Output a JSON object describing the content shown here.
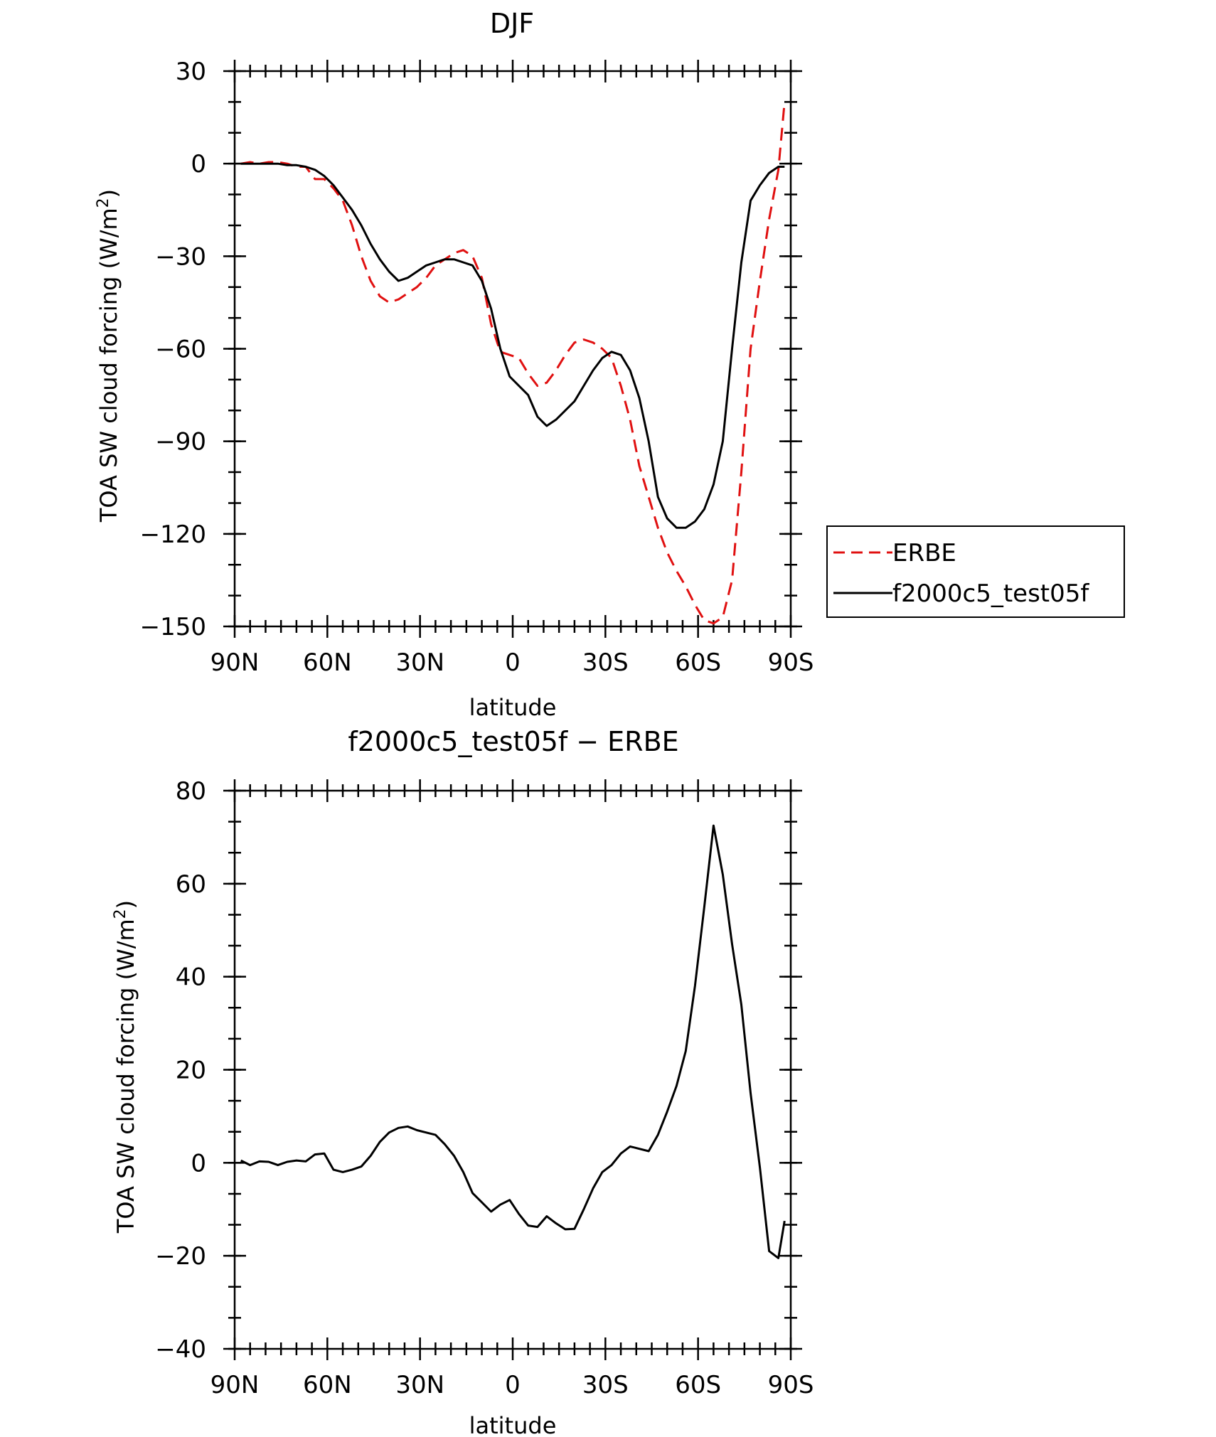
{
  "chart_data": [
    {
      "type": "line",
      "title": "DJF",
      "xlabel": "latitude",
      "ylabel": "TOA SW cloud forcing (W/m",
      "ylabel_sup": "2",
      "ylabel_close": ")",
      "xlim": [
        90,
        -90
      ],
      "ylim": [
        -150,
        30
      ],
      "x_ticks": [
        90,
        60,
        30,
        0,
        -30,
        -60,
        -90
      ],
      "x_tick_labels": [
        "90N",
        "60N",
        "30N",
        "0",
        "30S",
        "60S",
        "90S"
      ],
      "y_ticks": [
        30,
        0,
        -30,
        -60,
        -90,
        -120,
        -150
      ],
      "y_tick_labels": [
        "30",
        "0",
        "−30",
        "−60",
        "−90",
        "−120",
        "−150"
      ],
      "legend": "right",
      "series": [
        {
          "name": "ERBE",
          "color": "#e01010",
          "dash": "dashed",
          "x": [
            88,
            85,
            82,
            79,
            76,
            73,
            70,
            67,
            64,
            61,
            58,
            55,
            52,
            49,
            46,
            43,
            40,
            37,
            34,
            31,
            28,
            25,
            22,
            19,
            16,
            13,
            10,
            7,
            4,
            1,
            -2,
            -5,
            -8,
            -11,
            -14,
            -17,
            -20,
            -23,
            -26,
            -29,
            -32,
            -35,
            -38,
            -41,
            -44,
            -47,
            -50,
            -53,
            -56,
            -59,
            -62,
            -65,
            -68,
            -71,
            -74,
            -77,
            -80,
            -83,
            -86,
            -88
          ],
          "y": [
            0,
            0.5,
            0,
            0.5,
            0.5,
            0,
            -1,
            -1,
            -5,
            -5,
            -8,
            -12,
            -20,
            -30,
            -38,
            -43,
            -45,
            -44,
            -42,
            -40,
            -37,
            -33,
            -31,
            -29,
            -28,
            -30,
            -37,
            -52,
            -61,
            -62,
            -63,
            -68,
            -72,
            -71,
            -67,
            -62,
            -58,
            -57,
            -58,
            -60,
            -63,
            -72,
            -83,
            -98,
            -108,
            -118,
            -126,
            -132,
            -137,
            -143,
            -148,
            -149,
            -147,
            -135,
            -100,
            -60,
            -38,
            -18,
            -2,
            20
          ]
        },
        {
          "name": "f2000c5_test05f",
          "color": "#000000",
          "dash": "solid",
          "x": [
            88,
            85,
            82,
            79,
            76,
            73,
            70,
            67,
            64,
            61,
            58,
            55,
            52,
            49,
            46,
            43,
            40,
            37,
            34,
            31,
            28,
            25,
            22,
            19,
            16,
            13,
            10,
            7,
            4,
            1,
            -2,
            -5,
            -8,
            -11,
            -14,
            -17,
            -20,
            -23,
            -26,
            -29,
            -32,
            -35,
            -38,
            -41,
            -44,
            -47,
            -50,
            -53,
            -56,
            -59,
            -62,
            -65,
            -68,
            -71,
            -74,
            -77,
            -80,
            -83,
            -86,
            -88
          ],
          "y": [
            0,
            0,
            0,
            0,
            0,
            -0.5,
            -0.5,
            -1,
            -2,
            -4,
            -7,
            -11,
            -15,
            -20,
            -26,
            -31,
            -35,
            -38,
            -37,
            -35,
            -33,
            -32,
            -31,
            -31,
            -32,
            -33,
            -38,
            -47,
            -60,
            -69,
            -72,
            -75,
            -82,
            -85,
            -83,
            -80,
            -77,
            -72,
            -67,
            -63,
            -61,
            -62,
            -67,
            -76,
            -90,
            -108,
            -115,
            -118,
            -118,
            -116,
            -112,
            -104,
            -90,
            -60,
            -32,
            -12,
            -7,
            -3,
            -1,
            -1
          ]
        }
      ]
    },
    {
      "type": "line",
      "title": "f2000c5_test05f − ERBE",
      "xlabel": "latitude",
      "ylabel": "TOA SW cloud forcing (W/m",
      "ylabel_sup": "2",
      "ylabel_close": ")",
      "xlim": [
        90,
        -90
      ],
      "ylim": [
        -40,
        80
      ],
      "x_ticks": [
        90,
        60,
        30,
        0,
        -30,
        -60,
        -90
      ],
      "x_tick_labels": [
        "90N",
        "60N",
        "30N",
        "0",
        "30S",
        "60S",
        "90S"
      ],
      "y_ticks": [
        80,
        60,
        40,
        20,
        0,
        -20,
        -40
      ],
      "y_tick_labels": [
        "80",
        "60",
        "40",
        "20",
        "0",
        "−20",
        "−40"
      ],
      "series": [
        {
          "color": "#000000",
          "dash": "solid",
          "x": [
            88,
            85,
            82,
            79,
            76,
            73,
            70,
            67,
            64,
            61,
            58,
            55,
            52,
            49,
            46,
            43,
            40,
            37,
            34,
            31,
            28,
            25,
            22,
            19,
            16,
            13,
            10,
            7,
            4,
            1,
            -2,
            -5,
            -8,
            -11,
            -14,
            -17,
            -20,
            -23,
            -26,
            -29,
            -32,
            -35,
            -38,
            -41,
            -44,
            -47,
            -50,
            -53,
            -56,
            -59,
            -62,
            -65,
            -68,
            -71,
            -74,
            -77,
            -80,
            -83,
            -86,
            -88
          ],
          "y": [
            0.5,
            -0.5,
            0.3,
            0.2,
            -0.5,
            0.2,
            0.5,
            0.3,
            1.8,
            2.0,
            -1.5,
            -2.0,
            -1.5,
            -0.8,
            1.5,
            4.5,
            6.5,
            7.5,
            7.8,
            7.0,
            6.5,
            6.0,
            4.0,
            1.5,
            -2.0,
            -6.5,
            -8.5,
            -10.5,
            -9.0,
            -8.0,
            -11.0,
            -13.5,
            -13.8,
            -11.5,
            -13.0,
            -14.3,
            -14.2,
            -10.0,
            -5.5,
            -2.0,
            -0.5,
            2.0,
            3.5,
            3.0,
            2.5,
            6.0,
            11.0,
            16.5,
            24.0,
            38.0,
            55.0,
            72.5,
            62.0,
            47.0,
            34.0,
            15.0,
            -1.0,
            -19.0,
            -20.5,
            -12.5
          ]
        }
      ]
    }
  ]
}
